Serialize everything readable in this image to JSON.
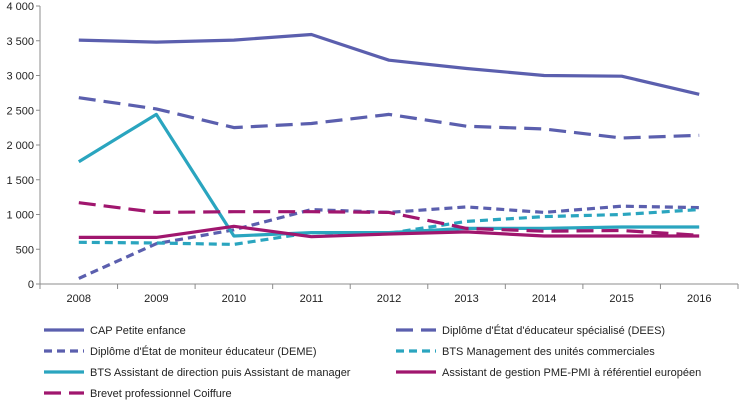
{
  "chart_data": {
    "type": "line",
    "title": "",
    "xlabel": "",
    "ylabel": "",
    "x": [
      "2008",
      "2009",
      "2010",
      "2011",
      "2012",
      "2013",
      "2014",
      "2015",
      "2016"
    ],
    "ylim": [
      0,
      4000
    ],
    "yticks": [
      0,
      500,
      1000,
      1500,
      2000,
      2500,
      3000,
      3500,
      4000
    ],
    "ytick_labels": [
      "0",
      "500",
      "1 000",
      "1 500",
      "2 000",
      "2 500",
      "3 000",
      "3 500",
      "4 000"
    ],
    "grid": false,
    "legend_position": "bottom",
    "series": [
      {
        "name": "CAP Petite enfance",
        "color": "#5b5fae",
        "dash": "solid",
        "values": [
          3510,
          3480,
          3510,
          3590,
          3220,
          3100,
          3000,
          2990,
          2730
        ]
      },
      {
        "name": "Diplôme d'État d'éducateur spécialisé (DEES)",
        "color": "#5b5fae",
        "dash": "long-dash",
        "values": [
          2680,
          2520,
          2250,
          2310,
          2440,
          2270,
          2230,
          2100,
          2140
        ]
      },
      {
        "name": "Diplôme d'État de moniteur éducateur (DEME)",
        "color": "#5b5fae",
        "dash": "short-dash",
        "values": [
          80,
          580,
          780,
          1070,
          1030,
          1110,
          1030,
          1120,
          1100
        ]
      },
      {
        "name": "BTS Management des unités commerciales",
        "color": "#2aa5bf",
        "dash": "short-dash",
        "values": [
          600,
          590,
          570,
          740,
          730,
          900,
          970,
          1000,
          1070
        ]
      },
      {
        "name": "BTS Assistant de direction puis Assistant de manager",
        "color": "#2aa5bf",
        "dash": "solid",
        "values": [
          1760,
          2440,
          690,
          740,
          740,
          800,
          800,
          820,
          820
        ]
      },
      {
        "name": "Assistant de gestion PME-PMI à référentiel européen",
        "color": "#a0166e",
        "dash": "solid",
        "values": [
          670,
          670,
          830,
          680,
          720,
          750,
          690,
          690,
          690
        ]
      },
      {
        "name": "Brevet professionnel Coiffure",
        "color": "#a0166e",
        "dash": "long-dash",
        "values": [
          1170,
          1030,
          1040,
          1040,
          1030,
          800,
          760,
          770,
          700
        ]
      }
    ]
  }
}
